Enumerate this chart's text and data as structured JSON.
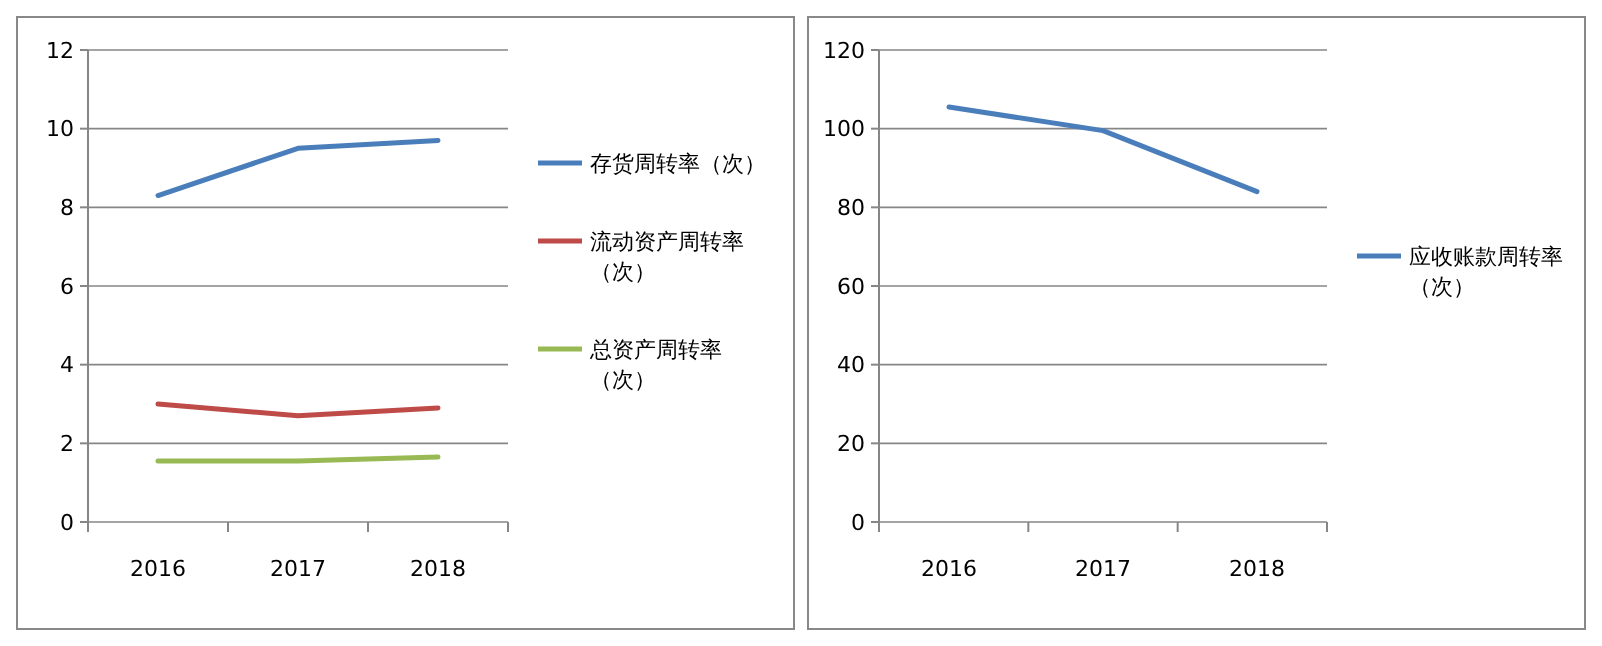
{
  "chart_data": [
    {
      "type": "line",
      "categories": [
        "2016",
        "2017",
        "2018"
      ],
      "ylim": [
        0,
        12
      ],
      "yticks": [
        0,
        2,
        4,
        6,
        8,
        10,
        12
      ],
      "grid": "y",
      "legend": "right",
      "series": [
        {
          "name": "存货周转率（次）",
          "color": "#4a7ebb",
          "values": [
            8.3,
            9.5,
            9.7
          ]
        },
        {
          "name": "流动资产周转率（次）",
          "color": "#be4b48",
          "values": [
            3.0,
            2.7,
            2.9
          ]
        },
        {
          "name": "总资产周转率（次）",
          "color": "#98b954",
          "values": [
            1.55,
            1.55,
            1.65
          ]
        }
      ]
    },
    {
      "type": "line",
      "categories": [
        "2016",
        "2017",
        "2018"
      ],
      "ylim": [
        0,
        120
      ],
      "yticks": [
        0,
        20,
        40,
        60,
        80,
        100,
        120
      ],
      "grid": "y",
      "legend": "right",
      "series": [
        {
          "name": "应收账款周转率（次）",
          "color": "#4a7ebb",
          "values": [
            105.5,
            99.5,
            84
          ]
        }
      ]
    }
  ]
}
